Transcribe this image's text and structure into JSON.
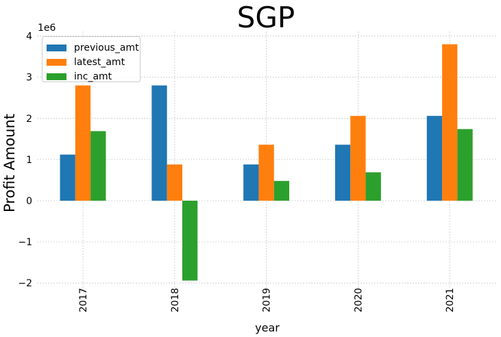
{
  "chart_data": {
    "type": "bar",
    "title": "SGP",
    "xlabel": "year",
    "ylabel": "Profit Amount",
    "y_offset_text": "1e6",
    "categories": [
      "2017",
      "2018",
      "2019",
      "2020",
      "2021"
    ],
    "series": [
      {
        "name": "previous_amt",
        "color": "#1f77b4",
        "values": [
          1120000,
          2800000,
          880000,
          1360000,
          2060000
        ]
      },
      {
        "name": "latest_amt",
        "color": "#ff7f0e",
        "values": [
          2800000,
          880000,
          1360000,
          2060000,
          3800000
        ]
      },
      {
        "name": "inc_amt",
        "color": "#2ca02c",
        "values": [
          1690000,
          -1940000,
          480000,
          690000,
          1740000
        ]
      }
    ],
    "ylim": [
      -2200000,
      4100000
    ],
    "yticks": [
      -2000000,
      -1000000,
      0,
      1000000,
      2000000,
      3000000,
      4000000
    ],
    "ytick_labels": [
      "−2",
      "−1",
      "0",
      "1",
      "2",
      "3",
      "4"
    ],
    "grid": true,
    "legend_position": "top-left"
  }
}
